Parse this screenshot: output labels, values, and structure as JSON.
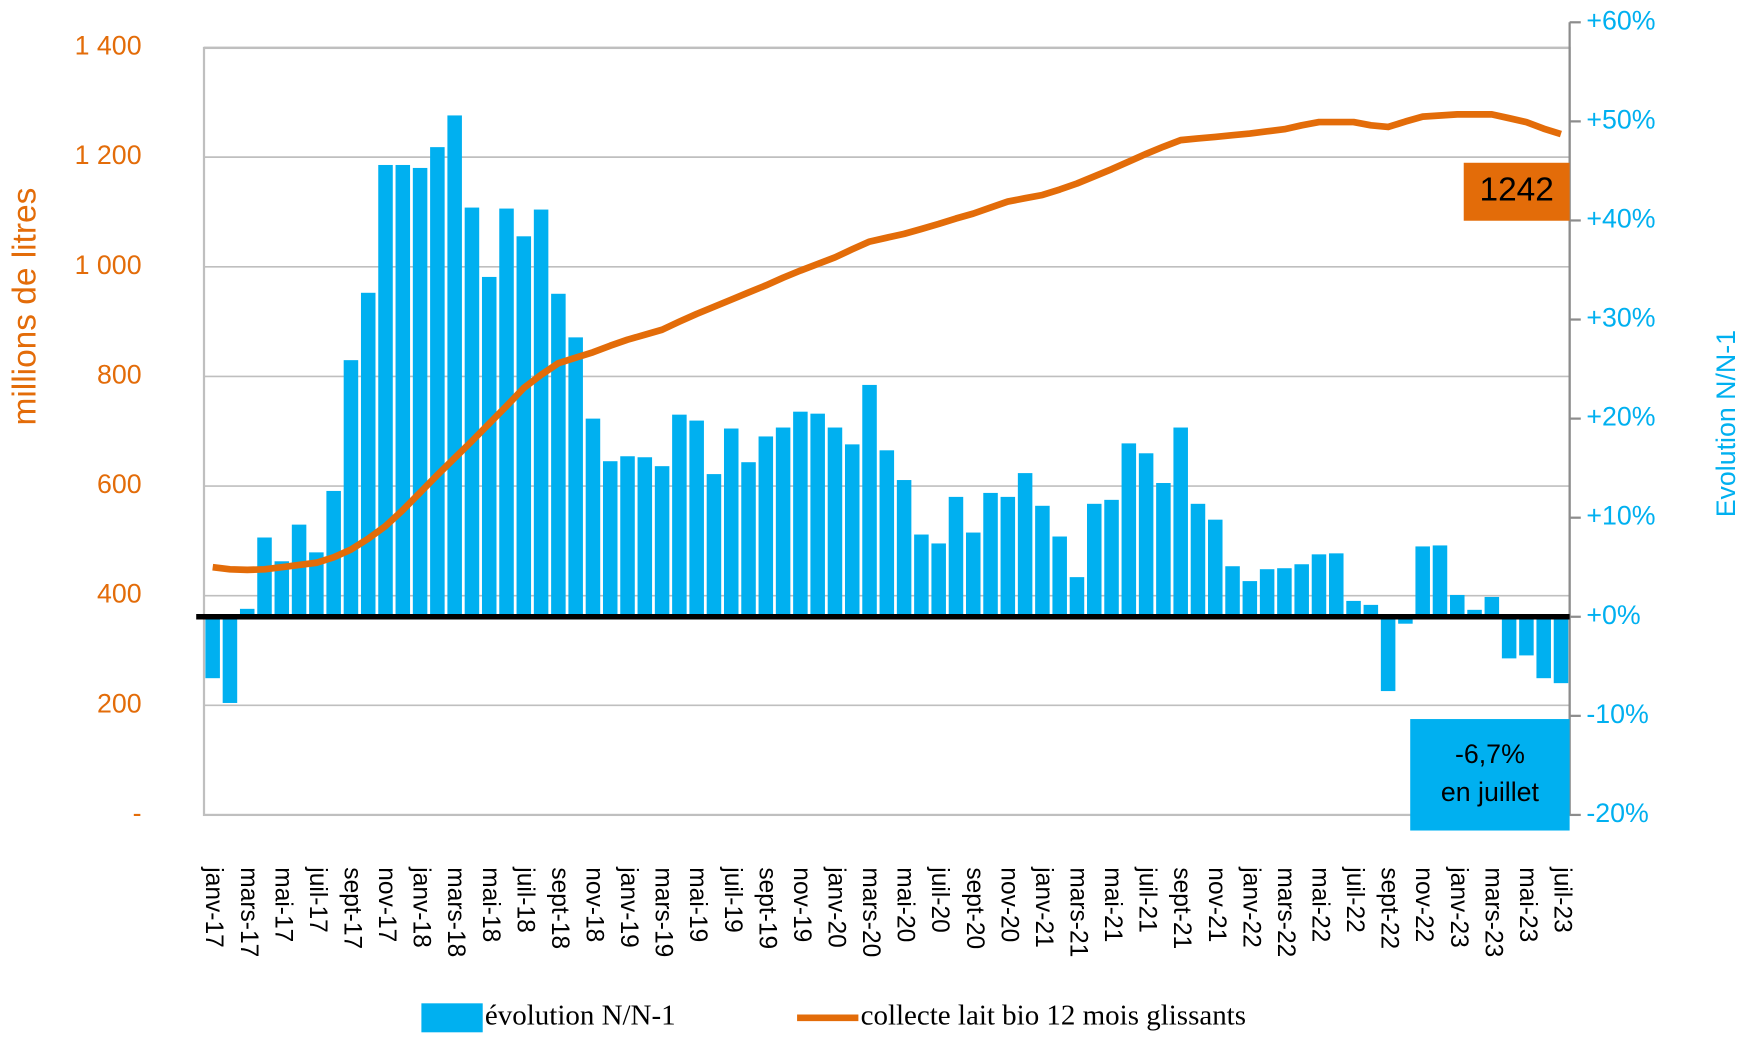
{
  "chart_data": {
    "type": "bar",
    "y_label": "millions de litres",
    "y2_label": "Evolution N/N-1",
    "categories": [
      "janv-17",
      null,
      "mars-17",
      null,
      "mai-17",
      null,
      "juil-17",
      null,
      "sept-17",
      null,
      "nov-17",
      null,
      "janv-18",
      null,
      "mars-18",
      null,
      "mai-18",
      null,
      "juil-18",
      null,
      "sept-18",
      null,
      "nov-18",
      null,
      "janv-19",
      null,
      "mars-19",
      null,
      "mai-19",
      null,
      "juil-19",
      null,
      "sept-19",
      null,
      "nov-19",
      null,
      "janv-20",
      null,
      "mars-20",
      null,
      "mai-20",
      null,
      "juil-20",
      null,
      "sept-20",
      null,
      "nov-20",
      null,
      "janv-21",
      null,
      "mars-21",
      null,
      "mai-21",
      null,
      "juil-21",
      null,
      "sept-21",
      null,
      "nov-21",
      null,
      "janv-22",
      null,
      "mars-22",
      null,
      "mai-22",
      null,
      "juil-22",
      null,
      "sept-22",
      null,
      "nov-22",
      null,
      "janv-23",
      null,
      "mars-23",
      null,
      "mai-23",
      null,
      "juil-23"
    ],
    "series": [
      {
        "name": "évolution N/N-1",
        "type": "bar",
        "axis": "y2",
        "color": "#00b0f0",
        "values": [
          -6.2,
          -8.7,
          0.8,
          8,
          5.6,
          9.3,
          6.5,
          12.7,
          25.9,
          32.7,
          45.6,
          45.6,
          45.3,
          47.4,
          50.6,
          41.3,
          34.3,
          41.2,
          38.4,
          41.1,
          32.6,
          28.2,
          20,
          15.7,
          16.2,
          16.1,
          15.2,
          20.4,
          19.8,
          14.4,
          19,
          15.6,
          18.2,
          19.1,
          20.7,
          20.5,
          19.1,
          17.4,
          23.4,
          16.8,
          13.8,
          8.3,
          7.4,
          12.1,
          8.5,
          12.5,
          12.1,
          14.5,
          11.2,
          8.1,
          4,
          11.4,
          11.8,
          17.5,
          16.5,
          13.5,
          19.1,
          11.4,
          9.8,
          5.1,
          3.6,
          4.8,
          4.9,
          5.3,
          6.3,
          6.4,
          1.6,
          1.2,
          -7.5,
          -0.7,
          7.1,
          7.2,
          2.2,
          0.7,
          2,
          -4.2,
          -3.9,
          -6.2,
          -6.7
        ]
      },
      {
        "name": "collecte lait bio 12 mois glissants",
        "type": "line",
        "axis": "y",
        "color": "#e36c09",
        "values": [
          452,
          448,
          447,
          448,
          452,
          456,
          460,
          470,
          484,
          504,
          527,
          556,
          588,
          620,
          651,
          682,
          714,
          746,
          779,
          803,
          824,
          834,
          844,
          856,
          867,
          876,
          885,
          900,
          914,
          927,
          940,
          953,
          966,
          980,
          993,
          1005,
          1017,
          1032,
          1046,
          1053,
          1060,
          1069,
          1078,
          1088,
          1097,
          1108,
          1119,
          1125,
          1131,
          1141,
          1152,
          1165,
          1178,
          1192,
          1206,
          1219,
          1231,
          1234,
          1237,
          1240,
          1243,
          1247,
          1251,
          1258,
          1264,
          1264,
          1264,
          1258,
          1255,
          1265,
          1274,
          1276,
          1278,
          1278,
          1278,
          1271,
          1264,
          1252,
          1242
        ]
      }
    ],
    "ylim": [
      0,
      1446
    ],
    "yticks": [
      {
        "value": 0,
        "label": "-"
      },
      200,
      400,
      600,
      800,
      {
        "value": 1000,
        "label": "1 000"
      },
      {
        "value": 1200,
        "label": "1 200"
      },
      {
        "value": 1400,
        "label": "1 400"
      }
    ],
    "y2lim": [
      -20,
      60
    ],
    "y2ticks": [
      {
        "value": -20,
        "label": "-20%"
      },
      {
        "value": -10,
        "label": "-10%"
      },
      {
        "value": 0,
        "label": "+0%"
      },
      {
        "value": 10,
        "label": "+10%"
      },
      {
        "value": 20,
        "label": "+20%"
      },
      {
        "value": 30,
        "label": "+30%"
      },
      {
        "value": 40,
        "label": "+40%"
      },
      {
        "value": 50,
        "label": "+50%"
      },
      {
        "value": 60,
        "label": "+60%"
      }
    ],
    "grid": true,
    "legend": "bottom",
    "annotations": [
      {
        "lines": [
          "1242"
        ],
        "color": "#e36c09",
        "text_color": "#000"
      },
      {
        "lines": [
          "-6,7%",
          "en juillet"
        ],
        "color": "#00b0f0",
        "text_color": "#000"
      }
    ]
  }
}
